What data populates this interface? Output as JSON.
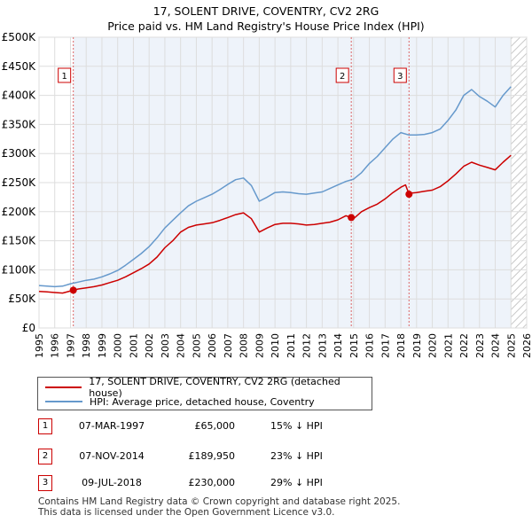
{
  "title": "17, SOLENT DRIVE, COVENTRY, CV2 2RG",
  "subtitle": "Price paid vs. HM Land Registry's House Price Index (HPI)",
  "colors": {
    "price_line": "#cc0000",
    "hpi_line": "#6699cc",
    "grid": "#dddddd",
    "plot_bg": "#eef3fa",
    "marker_dashes": "#dd6666",
    "hatch": "#c8c8c8"
  },
  "chart_data": {
    "type": "line",
    "xlim": [
      1995,
      2026
    ],
    "ylim": [
      0,
      500000
    ],
    "x_ticks": [
      "1995",
      "1996",
      "1997",
      "1998",
      "1999",
      "2000",
      "2001",
      "2002",
      "2003",
      "2004",
      "2005",
      "2006",
      "2007",
      "2008",
      "2009",
      "2010",
      "2011",
      "2012",
      "2013",
      "2014",
      "2015",
      "2016",
      "2017",
      "2018",
      "2019",
      "2020",
      "2021",
      "2022",
      "2023",
      "2024",
      "2025",
      "2026"
    ],
    "y_ticks": [
      {
        "value": 0,
        "label": "£0"
      },
      {
        "value": 50000,
        "label": "£50K"
      },
      {
        "value": 100000,
        "label": "£100K"
      },
      {
        "value": 150000,
        "label": "£150K"
      },
      {
        "value": 200000,
        "label": "£200K"
      },
      {
        "value": 250000,
        "label": "£250K"
      },
      {
        "value": 300000,
        "label": "£300K"
      },
      {
        "value": 350000,
        "label": "£350K"
      },
      {
        "value": 400000,
        "label": "£400K"
      },
      {
        "value": 450000,
        "label": "£450K"
      },
      {
        "value": 500000,
        "label": "£500K"
      }
    ],
    "hatch_from": 2025.0,
    "series": [
      {
        "name": "17, SOLENT DRIVE, COVENTRY, CV2 2RG (detached house)",
        "color": "#cc0000",
        "x": [
          1995.0,
          1995.5,
          1996.0,
          1996.5,
          1997.18,
          1997.5,
          1998.0,
          1998.5,
          1999.0,
          1999.5,
          2000.0,
          2000.5,
          2001.0,
          2001.5,
          2002.0,
          2002.5,
          2003.0,
          2003.5,
          2004.0,
          2004.5,
          2005.0,
          2005.5,
          2006.0,
          2006.5,
          2007.0,
          2007.5,
          2008.0,
          2008.5,
          2009.0,
          2009.5,
          2010.0,
          2010.5,
          2011.0,
          2011.5,
          2012.0,
          2012.5,
          2013.0,
          2013.5,
          2014.0,
          2014.5,
          2014.85,
          2015.0,
          2015.5,
          2016.0,
          2016.5,
          2017.0,
          2017.5,
          2018.0,
          2018.3,
          2018.52,
          2018.7,
          2019.0,
          2019.5,
          2020.0,
          2020.5,
          2021.0,
          2021.5,
          2022.0,
          2022.5,
          2023.0,
          2023.5,
          2024.0,
          2024.5,
          2025.0
        ],
        "y": [
          63000,
          62000,
          61000,
          60000,
          65000,
          67000,
          69000,
          71000,
          74000,
          78000,
          82000,
          88000,
          95000,
          102000,
          110000,
          122000,
          138000,
          150000,
          165000,
          173000,
          177000,
          179000,
          181000,
          185000,
          190000,
          195000,
          198000,
          188000,
          165000,
          172000,
          178000,
          180000,
          180000,
          179000,
          177000,
          178000,
          180000,
          182000,
          186000,
          193000,
          189950,
          188000,
          200000,
          207000,
          213000,
          222000,
          233000,
          242000,
          246000,
          230000,
          232000,
          233000,
          235000,
          237000,
          243000,
          253000,
          265000,
          278000,
          285000,
          280000,
          276000,
          272000,
          285000,
          297000
        ]
      },
      {
        "name": "HPI: Average price, detached house, Coventry",
        "color": "#6699cc",
        "x": [
          1995.0,
          1995.5,
          1996.0,
          1996.5,
          1997.0,
          1997.5,
          1998.0,
          1998.5,
          1999.0,
          1999.5,
          2000.0,
          2000.5,
          2001.0,
          2001.5,
          2002.0,
          2002.5,
          2003.0,
          2003.5,
          2004.0,
          2004.5,
          2005.0,
          2005.5,
          2006.0,
          2006.5,
          2007.0,
          2007.5,
          2008.0,
          2008.5,
          2009.0,
          2009.5,
          2010.0,
          2010.5,
          2011.0,
          2011.5,
          2012.0,
          2012.5,
          2013.0,
          2013.5,
          2014.0,
          2014.5,
          2015.0,
          2015.5,
          2016.0,
          2016.5,
          2017.0,
          2017.5,
          2018.0,
          2018.5,
          2019.0,
          2019.5,
          2020.0,
          2020.5,
          2021.0,
          2021.5,
          2022.0,
          2022.5,
          2023.0,
          2023.5,
          2024.0,
          2024.5,
          2025.0
        ],
        "y": [
          73000,
          72000,
          71000,
          72000,
          76000,
          79000,
          82000,
          84000,
          88000,
          93000,
          99000,
          108000,
          118000,
          128000,
          140000,
          155000,
          172000,
          185000,
          198000,
          210000,
          218000,
          224000,
          230000,
          238000,
          247000,
          255000,
          258000,
          245000,
          218000,
          225000,
          233000,
          234000,
          233000,
          231000,
          230000,
          232000,
          234000,
          240000,
          246000,
          252000,
          256000,
          267000,
          283000,
          295000,
          310000,
          325000,
          336000,
          332000,
          332000,
          333000,
          336000,
          342000,
          357000,
          375000,
          400000,
          410000,
          398000,
          390000,
          380000,
          400000,
          415000
        ]
      }
    ],
    "sales_markers": [
      {
        "label": "1",
        "x": 1997.18,
        "y": 65000
      },
      {
        "label": "2",
        "x": 2014.85,
        "y": 189950
      },
      {
        "label": "3",
        "x": 2018.52,
        "y": 230000
      }
    ]
  },
  "legend": {
    "items": [
      {
        "label": "17, SOLENT DRIVE, COVENTRY, CV2 2RG (detached house)",
        "color": "#cc0000"
      },
      {
        "label": "HPI: Average price, detached house, Coventry",
        "color": "#6699cc"
      }
    ]
  },
  "sales": [
    {
      "num": "1",
      "date": "07-MAR-1997",
      "price": "£65,000",
      "hpi": "15% ↓ HPI"
    },
    {
      "num": "2",
      "date": "07-NOV-2014",
      "price": "£189,950",
      "hpi": "23% ↓ HPI"
    },
    {
      "num": "3",
      "date": "09-JUL-2018",
      "price": "£230,000",
      "hpi": "29% ↓ HPI"
    }
  ],
  "footer": {
    "line1": "Contains HM Land Registry data © Crown copyright and database right 2025.",
    "line2": "This data is licensed under the Open Government Licence v3.0."
  }
}
